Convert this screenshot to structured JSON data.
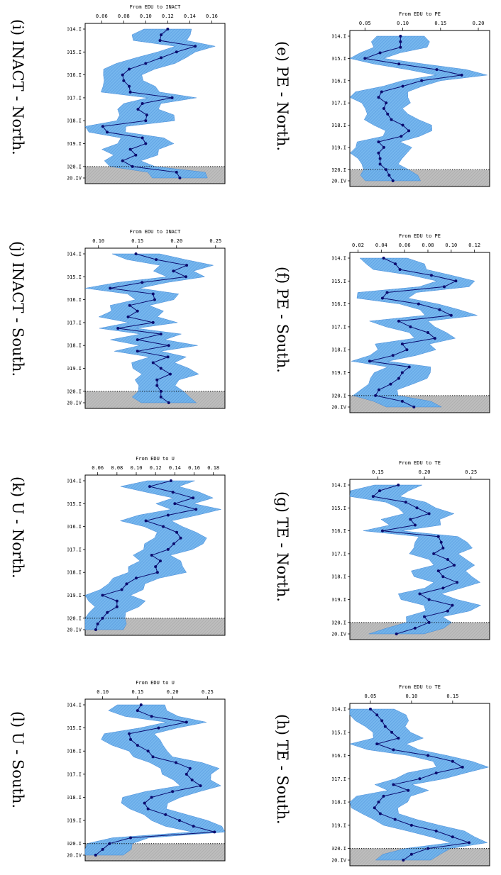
{
  "panels": [
    {
      "id": "e",
      "caption": "(e) PE - North."
    },
    {
      "id": "f",
      "caption": "(f) PE - South."
    },
    {
      "id": "g",
      "caption": "(g) TE - North."
    },
    {
      "id": "h",
      "caption": "(h) TE - South."
    },
    {
      "id": "i",
      "caption": "(i) INACT - North."
    },
    {
      "id": "j",
      "caption": "(j) INACT - South."
    },
    {
      "id": "k",
      "caption": "(k) U - North."
    },
    {
      "id": "l",
      "caption": "(l) U - South."
    }
  ],
  "colors": {
    "band": "#6fb4ee",
    "band_dark": "#3f86d6",
    "line": "#0b0b6e",
    "shade": "#bdbdbd"
  },
  "chart_data": [
    {
      "id": "e",
      "type": "line",
      "title": "From EDU to PE",
      "xticks": [
        0.05,
        0.1,
        0.15,
        0.2
      ],
      "xlim": [
        0.03,
        0.215
      ],
      "yticks": [
        "2014.I",
        "2015.I",
        "2016.I",
        "2017.I",
        "2018.I",
        "2019.I",
        "2020.I",
        "2020.IV"
      ],
      "values": [
        0.097,
        0.097,
        0.097,
        0.07,
        0.05,
        0.095,
        0.145,
        0.178,
        0.125,
        0.1,
        0.072,
        0.068,
        0.078,
        0.075,
        0.08,
        0.085,
        0.1,
        0.108,
        0.098,
        0.068,
        0.075,
        0.068,
        0.07,
        0.07,
        0.078,
        0.082,
        0.087
      ]
    },
    {
      "id": "f",
      "type": "line",
      "title": "From EDU to PE",
      "xticks": [
        0.02,
        0.04,
        0.06,
        0.08,
        0.1,
        0.12
      ],
      "xlim": [
        0.013,
        0.133
      ],
      "yticks": [
        "2014.I",
        "2015.I",
        "2016.I",
        "2017.I",
        "2018.I",
        "2019.I",
        "2020.I",
        "2020.IV"
      ],
      "values": [
        0.042,
        0.052,
        0.056,
        0.083,
        0.104,
        0.094,
        0.045,
        0.041,
        0.072,
        0.09,
        0.1,
        0.055,
        0.065,
        0.08,
        0.086,
        0.058,
        0.062,
        0.05,
        0.03,
        0.064,
        0.058,
        0.055,
        0.048,
        0.038,
        0.035,
        0.058,
        0.068
      ]
    },
    {
      "id": "g",
      "type": "line",
      "title": "From EDU to TE",
      "xticks": [
        0.15,
        0.2,
        0.25
      ],
      "xlim": [
        0.12,
        0.27
      ],
      "yticks": [
        "2014.I",
        "2015.I",
        "2016.I",
        "2017.I",
        "2018.I",
        "2019.I",
        "2020.I",
        "2020.IV"
      ],
      "values": [
        0.172,
        0.152,
        0.145,
        0.18,
        0.192,
        0.205,
        0.185,
        0.19,
        0.155,
        0.215,
        0.218,
        0.22,
        0.21,
        0.225,
        0.232,
        0.215,
        0.22,
        0.235,
        0.22,
        0.195,
        0.205,
        0.23,
        0.225,
        0.2,
        0.205,
        0.19,
        0.17
      ]
    },
    {
      "id": "h",
      "type": "line",
      "title": "From EDU to TE",
      "xticks": [
        0.05,
        0.1,
        0.15
      ],
      "xlim": [
        0.025,
        0.195
      ],
      "yticks": [
        "2014.I",
        "2015.I",
        "2016.I",
        "2017.I",
        "2018.I",
        "2019.I",
        "2020.I",
        "2020.IV"
      ],
      "values": [
        0.05,
        0.058,
        0.064,
        0.068,
        0.076,
        0.084,
        0.058,
        0.078,
        0.12,
        0.15,
        0.162,
        0.13,
        0.11,
        0.078,
        0.096,
        0.066,
        0.06,
        0.055,
        0.062,
        0.08,
        0.1,
        0.13,
        0.15,
        0.17,
        0.12,
        0.1,
        0.09
      ]
    },
    {
      "id": "i",
      "type": "line",
      "title": "From EDU to INACT",
      "xticks": [
        0.06,
        0.08,
        0.1,
        0.12,
        0.14,
        0.16
      ],
      "xlim": [
        0.045,
        0.172
      ],
      "yticks": [
        "2014.I",
        "2015.I",
        "2016.I",
        "2017.I",
        "2018.I",
        "2019.I",
        "2020.I",
        "2020.IV"
      ],
      "values": [
        0.12,
        0.114,
        0.113,
        0.145,
        0.128,
        0.114,
        0.1,
        0.085,
        0.079,
        0.08,
        0.085,
        0.086,
        0.124,
        0.097,
        0.093,
        0.101,
        0.1,
        0.061,
        0.065,
        0.097,
        0.1,
        0.086,
        0.091,
        0.079,
        0.088,
        0.128,
        0.131
      ]
    },
    {
      "id": "j",
      "type": "line",
      "title": "From EDU to INACT",
      "xticks": [
        0.1,
        0.15,
        0.2,
        0.25
      ],
      "xlim": [
        0.083,
        0.262
      ],
      "yticks": [
        "2014.I",
        "2015.I",
        "2016.I",
        "2017.I",
        "2018.I",
        "2019.I",
        "2020.I",
        "2020.IV"
      ],
      "values": [
        0.148,
        0.174,
        0.213,
        0.196,
        0.212,
        0.156,
        0.115,
        0.17,
        0.172,
        0.14,
        0.15,
        0.138,
        0.17,
        0.125,
        0.18,
        0.15,
        0.19,
        0.15,
        0.189,
        0.17,
        0.18,
        0.192,
        0.175,
        0.175,
        0.18,
        0.18,
        0.19
      ]
    },
    {
      "id": "k",
      "type": "line",
      "title": "From EDU to U",
      "xticks": [
        0.06,
        0.08,
        0.1,
        0.12,
        0.14,
        0.16,
        0.18
      ],
      "xlim": [
        0.047,
        0.192
      ],
      "yticks": [
        "2014.I",
        "2015.I",
        "2016.I",
        "2017.I",
        "2018.I",
        "2019.I",
        "2020.I",
        "2020.IV"
      ],
      "values": [
        0.136,
        0.114,
        0.138,
        0.159,
        0.14,
        0.162,
        0.133,
        0.11,
        0.128,
        0.142,
        0.146,
        0.139,
        0.133,
        0.116,
        0.125,
        0.12,
        0.122,
        0.1,
        0.09,
        0.085,
        0.065,
        0.08,
        0.08,
        0.07,
        0.065,
        0.06,
        0.058
      ]
    },
    {
      "id": "l",
      "type": "line",
      "title": "From EDU to U",
      "xticks": [
        0.1,
        0.15,
        0.2,
        0.25
      ],
      "xlim": [
        0.075,
        0.275
      ],
      "yticks": [
        "2014.I",
        "2015.I",
        "2016.I",
        "2017.I",
        "2018.I",
        "2019.I",
        "2020.I",
        "2020.IV"
      ],
      "values": [
        0.155,
        0.15,
        0.17,
        0.22,
        0.18,
        0.138,
        0.14,
        0.15,
        0.165,
        0.172,
        0.205,
        0.225,
        0.22,
        0.228,
        0.24,
        0.2,
        0.17,
        0.16,
        0.165,
        0.19,
        0.21,
        0.23,
        0.26,
        0.14,
        0.11,
        0.1,
        0.09
      ]
    }
  ]
}
